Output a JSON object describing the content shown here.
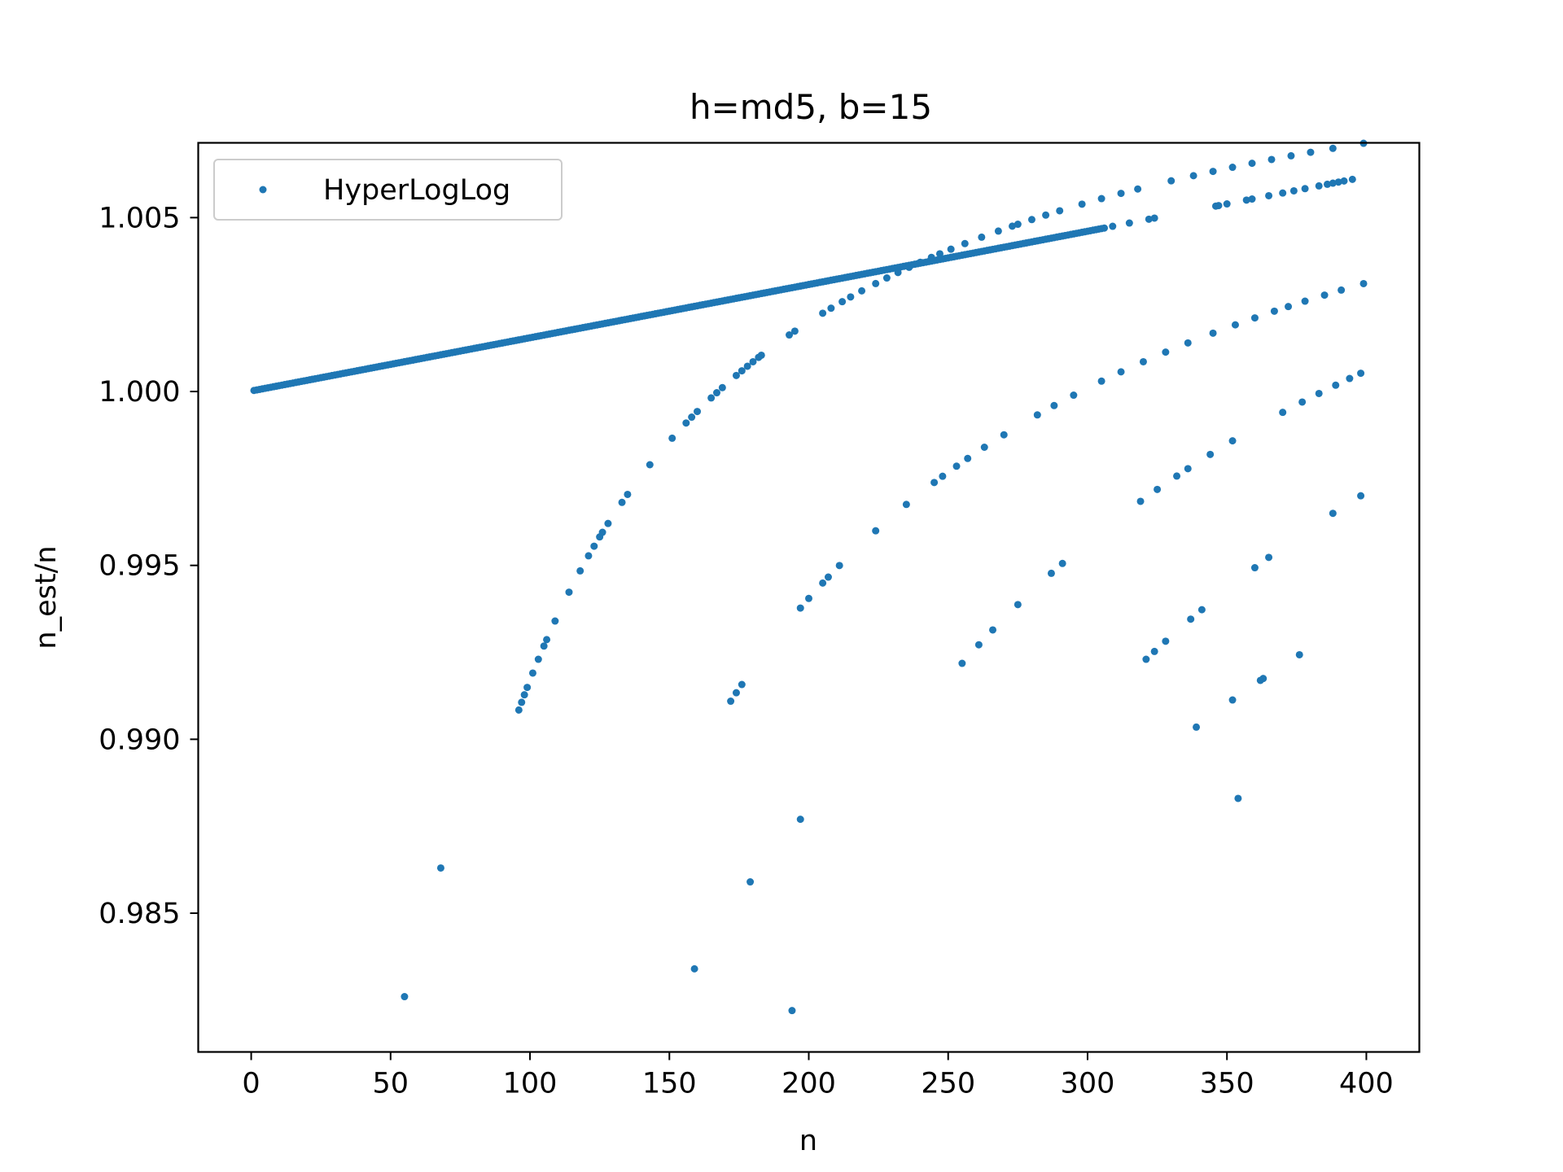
{
  "chart_data": {
    "type": "scatter",
    "title": "h=md5, b=15",
    "xlabel": "n",
    "ylabel": "n_est/n",
    "xlim": [
      -19,
      419
    ],
    "ylim": [
      0.98101,
      1.00715
    ],
    "xticks": [
      0,
      50,
      100,
      150,
      200,
      250,
      300,
      350,
      400
    ],
    "xtick_labels": [
      "0",
      "50",
      "100",
      "150",
      "200",
      "250",
      "300",
      "350",
      "400"
    ],
    "yticks": [
      0.985,
      0.99,
      0.995,
      1.0,
      1.005
    ],
    "ytick_labels": [
      "0.985",
      "0.990",
      "0.995",
      "1.000",
      "1.005"
    ],
    "grid": false,
    "legend": {
      "position": "top-left",
      "entries": [
        "HyperLogLog"
      ]
    },
    "colors": {
      "series": "#1f77b4"
    },
    "series": [
      {
        "name": "HyperLogLog",
        "marker": "dot",
        "segments": [
          {
            "x_start": 1,
            "x_end": 306,
            "model": "linear",
            "y_start": 1.00003,
            "y_end": 1.0047,
            "x_values": null
          },
          {
            "x_start": 309,
            "x_end": 395,
            "model": "linear",
            "y_start": 1.00475,
            "y_end": 1.0061,
            "x_values": [
              309,
              315,
              322,
              324,
              346,
              347,
              350,
              357,
              359,
              365,
              370,
              374,
              378,
              383,
              386,
              388,
              390,
              392,
              395
            ]
          },
          {
            "x_start": 96,
            "x_end": 399,
            "model": "c_over_n",
            "a": 1.0123,
            "c": 2.06,
            "x_values": [
              96,
              97,
              98,
              99,
              101,
              103,
              105,
              106,
              109,
              114,
              118,
              121,
              123,
              125,
              126,
              128,
              133,
              135,
              143,
              151,
              156,
              158,
              160,
              165,
              167,
              169,
              174,
              176,
              178,
              180,
              182,
              183,
              193,
              195,
              205,
              208,
              212,
              215,
              219,
              224,
              228,
              232,
              236,
              240,
              244,
              247,
              251,
              256,
              262,
              268,
              273,
              275,
              280,
              285,
              290,
              298,
              305,
              312,
              318,
              330,
              338,
              345,
              352,
              359,
              366,
              373,
              380,
              388,
              399
            ]
          },
          {
            "x_start": 172,
            "x_end": 399,
            "model": "c_over_n",
            "a": 1.0122,
            "c": 3.63,
            "x_values": [
              172,
              174,
              176,
              197,
              200,
              205,
              207,
              211,
              224,
              235,
              245,
              248,
              253,
              257,
              263,
              270,
              282,
              288,
              295,
              305,
              312,
              320,
              328,
              336,
              345,
              353,
              360,
              367,
              372,
              378,
              385,
              391,
              399
            ]
          },
          {
            "x_start": 255,
            "x_end": 398,
            "model": "c_over_n",
            "a": 1.0154,
            "c": 5.92,
            "x_values": [
              255,
              261,
              266,
              275,
              287,
              291,
              319,
              325,
              332,
              336,
              344,
              352,
              370,
              377,
              383,
              389,
              394,
              398
            ]
          },
          {
            "x_start": 321,
            "x_end": 398,
            "model": "c_over_n",
            "a": 1.0166,
            "c": 7.8,
            "x_values": [
              321,
              324,
              328,
              337,
              341,
              360,
              365,
              388,
              398
            ]
          },
          {
            "x_start": 339,
            "x_end": 376,
            "model": "c_over_n",
            "a": 1.0115,
            "c": 7.17,
            "x_values": [
              339,
              352,
              362,
              363,
              376
            ]
          }
        ],
        "extra_points": [
          {
            "x": 55,
            "y": 0.9826
          },
          {
            "x": 68,
            "y": 0.9863
          },
          {
            "x": 159,
            "y": 0.9834
          },
          {
            "x": 179,
            "y": 0.9859
          },
          {
            "x": 194,
            "y": 0.9822
          },
          {
            "x": 197,
            "y": 0.9877
          },
          {
            "x": 354,
            "y": 0.9883
          }
        ]
      }
    ]
  }
}
